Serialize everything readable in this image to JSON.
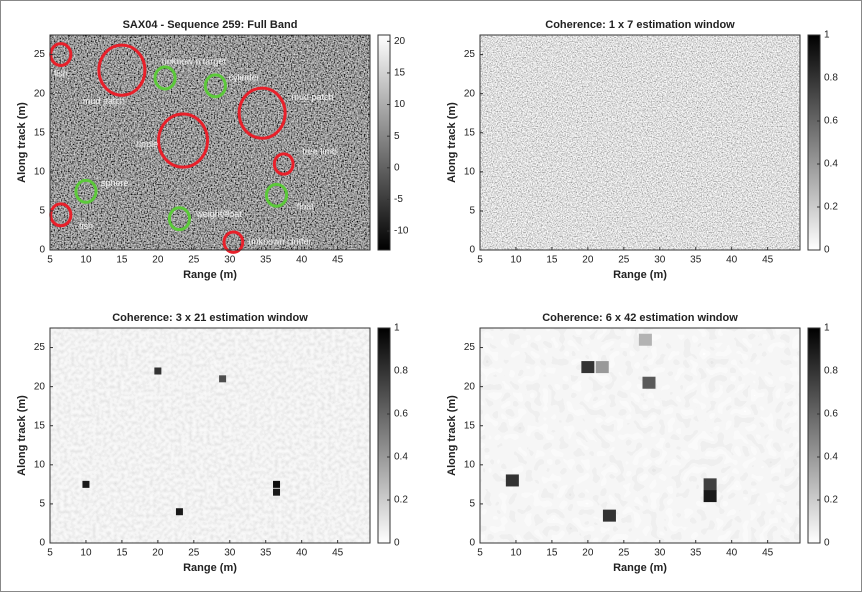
{
  "chart_data": [
    {
      "type": "heatmap",
      "title": "SAX04 - Sequence 259: Full Band",
      "xlabel": "Range (m)",
      "ylabel": "Along track (m)",
      "xlim": [
        5,
        49.5
      ],
      "ylim": [
        0,
        27.5
      ],
      "xticks": [
        5,
        10,
        15,
        20,
        25,
        30,
        35,
        40,
        45
      ],
      "yticks": [
        0,
        5,
        10,
        15,
        20,
        25
      ],
      "clim": [
        -13,
        21
      ],
      "cticks": [
        -10,
        -5,
        0,
        5,
        10,
        15,
        20
      ],
      "annotations": [
        {
          "text": "fish",
          "x": 6.5,
          "y": 25,
          "r": 1.4,
          "color": "#e8202a",
          "label_x": 6.5,
          "label_y": 22.5
        },
        {
          "text": "mud patch",
          "x": 15,
          "y": 23,
          "r": 3.2,
          "color": "#e8202a",
          "label_x": 12.5,
          "label_y": 19
        },
        {
          "text": "unknow n target",
          "x": 21,
          "y": 22,
          "r": 1.4,
          "color": "#5cc83a",
          "label_x": 25,
          "label_y": 24
        },
        {
          "text": "cylinder",
          "x": 28,
          "y": 21,
          "r": 1.4,
          "color": "#5cc83a",
          "label_x": 32,
          "label_y": 22
        },
        {
          "text": "mud patch",
          "x": 34.5,
          "y": 17.5,
          "r": 3.2,
          "color": "#e8202a",
          "label_x": 41.5,
          "label_y": 19.5
        },
        {
          "text": "ripple",
          "x": 23.5,
          "y": 14,
          "r": 3.4,
          "color": "#e8202a",
          "label_x": 18.5,
          "label_y": 13.5
        },
        {
          "text": "tree limb",
          "x": 37.5,
          "y": 11,
          "r": 1.3,
          "color": "#e8202a",
          "label_x": 42.5,
          "label_y": 12.5
        },
        {
          "text": "sphere",
          "x": 10,
          "y": 7.5,
          "r": 1.4,
          "color": "#5cc83a",
          "label_x": 14,
          "label_y": 8.5
        },
        {
          "text": "float",
          "x": 36.5,
          "y": 7,
          "r": 1.4,
          "color": "#5cc83a",
          "label_x": 40.5,
          "label_y": 5.5
        },
        {
          "text": "fish",
          "x": 6.5,
          "y": 4.5,
          "r": 1.4,
          "color": "#e8202a",
          "label_x": 10,
          "label_y": 3
        },
        {
          "text": "weight/float",
          "x": 23,
          "y": 4,
          "r": 1.4,
          "color": "#5cc83a",
          "label_x": 28.5,
          "label_y": 4.5
        },
        {
          "text": "unknown clutter",
          "x": 30.5,
          "y": 1,
          "r": 1.3,
          "color": "#e8202a",
          "label_x": 37,
          "label_y": 1
        }
      ]
    },
    {
      "type": "heatmap",
      "title": "Coherence: 1 x 7 estimation window",
      "xlabel": "Range (m)",
      "ylabel": "Along track (m)",
      "xlim": [
        5,
        49.5
      ],
      "ylim": [
        0,
        27.5
      ],
      "xticks": [
        5,
        10,
        15,
        20,
        25,
        30,
        35,
        40,
        45
      ],
      "yticks": [
        0,
        5,
        10,
        15,
        20,
        25
      ],
      "clim": [
        0,
        1
      ],
      "cticks": [
        0,
        0.2,
        0.4,
        0.6,
        0.8,
        1
      ]
    },
    {
      "type": "heatmap",
      "title": "Coherence: 3 x 21 estimation window",
      "xlabel": "Range (m)",
      "ylabel": "Along track (m)",
      "xlim": [
        5,
        49.5
      ],
      "ylim": [
        0,
        27.5
      ],
      "xticks": [
        5,
        10,
        15,
        20,
        25,
        30,
        35,
        40,
        45
      ],
      "yticks": [
        0,
        5,
        10,
        15,
        20,
        25
      ],
      "clim": [
        0,
        1
      ],
      "cticks": [
        0,
        0.2,
        0.4,
        0.6,
        0.8,
        1
      ],
      "cells": [
        {
          "x": 10,
          "y": 7.5,
          "value": 0.9
        },
        {
          "x": 36.5,
          "y": 7.5,
          "value": 0.95
        },
        {
          "x": 36.5,
          "y": 6.5,
          "value": 0.9
        },
        {
          "x": 23,
          "y": 4,
          "value": 0.9
        },
        {
          "x": 20,
          "y": 22,
          "value": 0.8
        },
        {
          "x": 29,
          "y": 21,
          "value": 0.7
        }
      ]
    },
    {
      "type": "heatmap",
      "title": "Coherence: 6 x 42 estimation window",
      "xlabel": "Range (m)",
      "ylabel": "Along track (m)",
      "xlim": [
        5,
        49.5
      ],
      "ylim": [
        0,
        27.5
      ],
      "xticks": [
        5,
        10,
        15,
        20,
        25,
        30,
        35,
        40,
        45
      ],
      "yticks": [
        0,
        5,
        10,
        15,
        20,
        25
      ],
      "clim": [
        0,
        1
      ],
      "cticks": [
        0,
        0.2,
        0.4,
        0.6,
        0.8,
        1
      ],
      "cells": [
        {
          "x": 9.5,
          "y": 8,
          "value": 0.8
        },
        {
          "x": 20,
          "y": 22.5,
          "value": 0.8
        },
        {
          "x": 22,
          "y": 22.5,
          "value": 0.4
        },
        {
          "x": 23,
          "y": 3.5,
          "value": 0.8
        },
        {
          "x": 28.5,
          "y": 20.5,
          "value": 0.65
        },
        {
          "x": 37,
          "y": 7.5,
          "value": 0.75
        },
        {
          "x": 37,
          "y": 6,
          "value": 0.9
        },
        {
          "x": 28,
          "y": 26,
          "value": 0.3
        }
      ]
    }
  ]
}
